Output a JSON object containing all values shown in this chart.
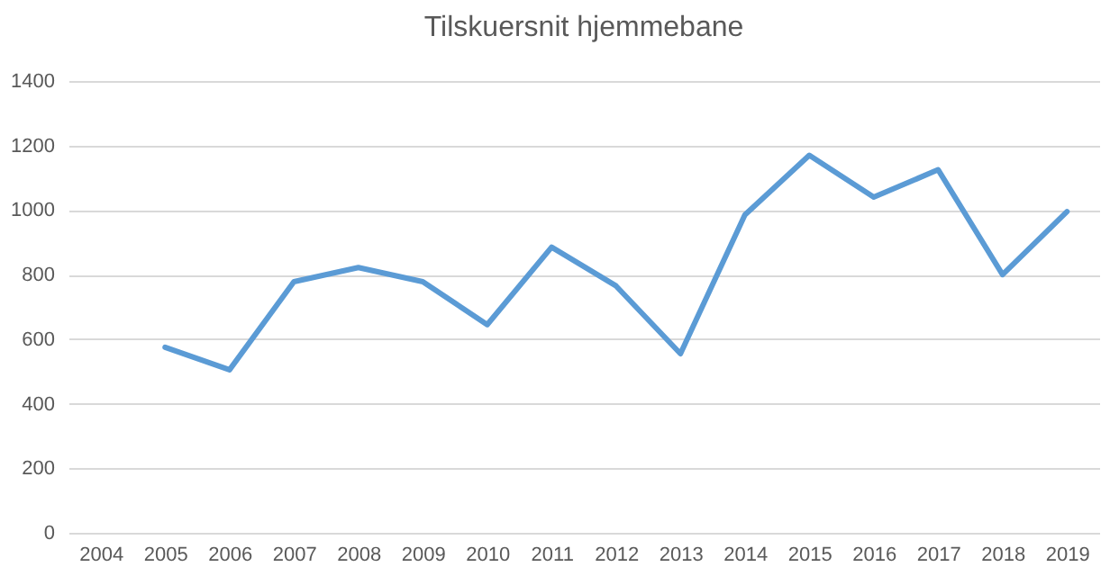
{
  "chart_data": {
    "type": "line",
    "title": "Tilskuersnit hjemmebane",
    "categories": [
      "2004",
      "2005",
      "2006",
      "2007",
      "2008",
      "2009",
      "2010",
      "2011",
      "2012",
      "2013",
      "2014",
      "2015",
      "2016",
      "2017",
      "2018",
      "2019"
    ],
    "series": [
      {
        "color": "#5b9bd5",
        "values": [
          null,
          575,
          505,
          778,
          822,
          778,
          645,
          885,
          765,
          555,
          985,
          1170,
          1040,
          1125,
          800,
          995
        ]
      }
    ],
    "ylim": [
      0,
      1400
    ],
    "yticks": [
      0,
      200,
      400,
      600,
      800,
      1000,
      1200,
      1400
    ],
    "grid": "y",
    "marker": "none",
    "line_style": "solid"
  }
}
